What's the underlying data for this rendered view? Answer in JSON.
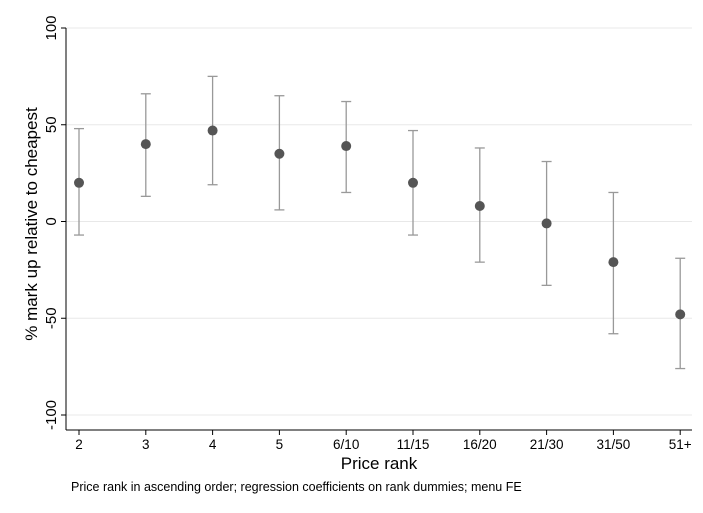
{
  "chart_data": {
    "type": "scatter",
    "subtype": "point estimates with confidence intervals",
    "categories": [
      "2",
      "3",
      "4",
      "5",
      "6/10",
      "11/15",
      "16/20",
      "21/30",
      "31/50",
      "51+"
    ],
    "series": [
      {
        "values": [
          20,
          40,
          47,
          35,
          39,
          20,
          8,
          -1,
          -21,
          -48
        ],
        "ci_low": [
          -7,
          13,
          19,
          6,
          15,
          -7,
          -21,
          -33,
          -58,
          -76
        ],
        "ci_high": [
          48,
          66,
          75,
          65,
          62,
          47,
          38,
          31,
          15,
          -19
        ]
      }
    ],
    "xlabel": "Price rank",
    "ylabel": "% mark up relative to cheapest",
    "ylim": [
      -100,
      100
    ],
    "yticks": [
      -100,
      -50,
      0,
      50,
      100
    ],
    "grid": "horizontal",
    "note": "Price rank in ascending order; regression coefficients on rank dummies; menu FE",
    "colors": {
      "marker": "#555555",
      "errorbar": "#999999",
      "grid": "#e8e8e8",
      "axis": "#000000"
    }
  }
}
